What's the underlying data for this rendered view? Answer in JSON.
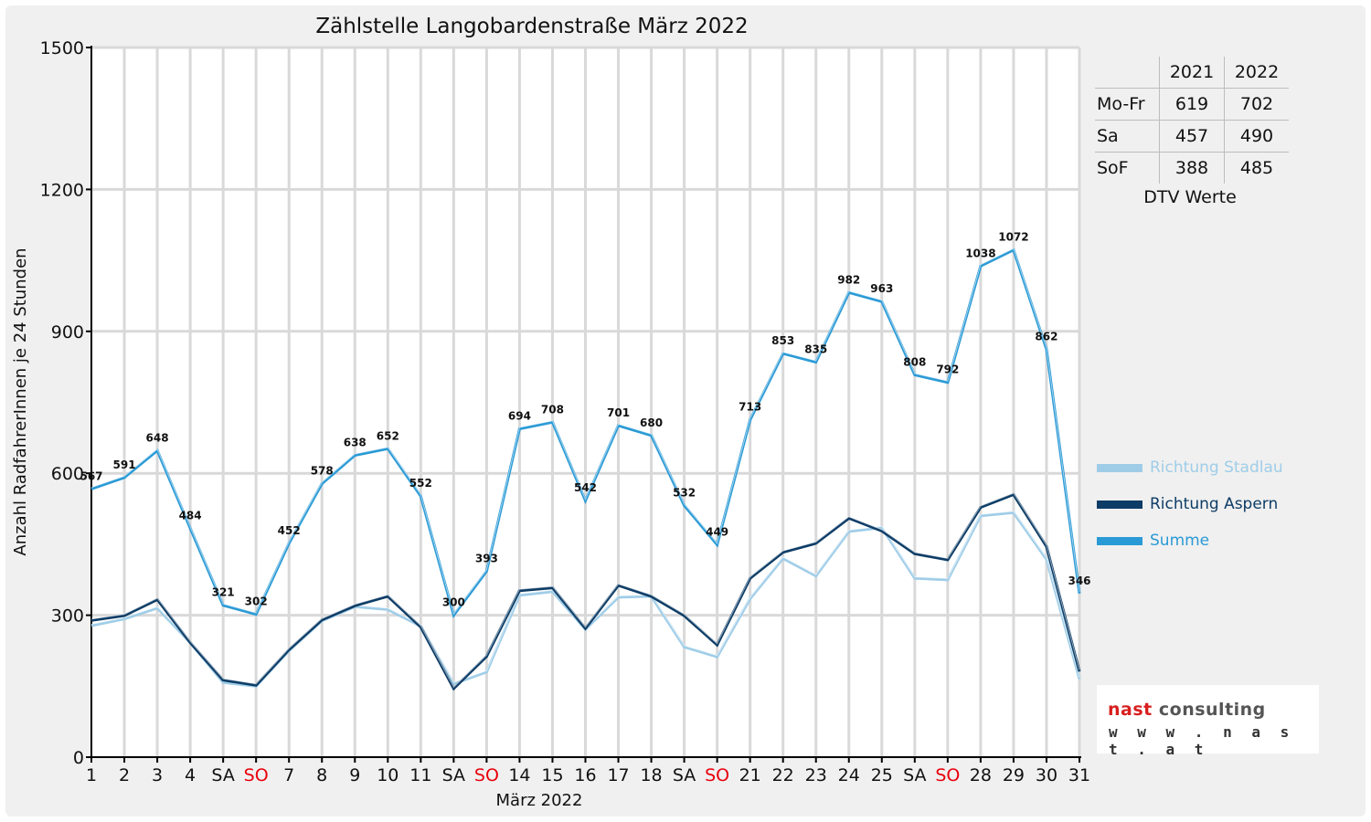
{
  "chart_data": {
    "type": "line",
    "title": "Zählstelle Langobardenstraße März 2022",
    "xlabel": "März 2022",
    "ylabel": "Anzahl RadfahrerInnen je 24 Stunden",
    "ylim": [
      0,
      1500
    ],
    "yticks": [
      0,
      300,
      600,
      900,
      1200,
      1500
    ],
    "grid": true,
    "legend_position": "right",
    "categories": [
      "1",
      "2",
      "3",
      "4",
      "SA",
      "SO",
      "7",
      "8",
      "9",
      "10",
      "11",
      "SA",
      "SO",
      "14",
      "15",
      "16",
      "17",
      "18",
      "SA",
      "SO",
      "21",
      "22",
      "23",
      "24",
      "25",
      "SA",
      "SO",
      "28",
      "29",
      "30",
      "31"
    ],
    "weekend_color": "#e8000b",
    "series": [
      {
        "name": "Richtung Stadlau",
        "color": "#9fcde8",
        "values": [
          278,
          292,
          315,
          242,
          158,
          150,
          225,
          288,
          318,
          312,
          277,
          155,
          180,
          342,
          350,
          270,
          338,
          340,
          233,
          212,
          335,
          420,
          383,
          477,
          485,
          378,
          375,
          510,
          517,
          418,
          165
        ]
      },
      {
        "name": "Richtung Aspern",
        "color": "#0d3c66",
        "values": [
          289,
          299,
          333,
          242,
          163,
          152,
          227,
          290,
          320,
          340,
          275,
          145,
          213,
          352,
          358,
          272,
          363,
          340,
          299,
          237,
          378,
          433,
          452,
          505,
          478,
          430,
          417,
          528,
          555,
          445,
          181
        ]
      },
      {
        "name": "Summe",
        "color": "#2a9ad6",
        "values": [
          567,
          591,
          648,
          484,
          321,
          302,
          452,
          578,
          638,
          652,
          552,
          300,
          393,
          694,
          708,
          542,
          701,
          680,
          532,
          449,
          713,
          853,
          835,
          982,
          963,
          808,
          792,
          1038,
          1072,
          862,
          346
        ]
      }
    ],
    "data_labels": [
      "567",
      "591",
      "648",
      "484",
      "321",
      "302",
      "452",
      "578",
      "638",
      "652",
      "552",
      "300",
      "393",
      "694",
      "708",
      "542",
      "701",
      "680",
      "532",
      "449",
      "713",
      "853",
      "835",
      "982",
      "963",
      "808",
      "792",
      "1038",
      "1072",
      "862",
      "346"
    ]
  },
  "dtv_table": {
    "years": [
      "2021",
      "2022"
    ],
    "rows": [
      {
        "label": "Mo-Fr",
        "v2021": "619",
        "v2022": "702"
      },
      {
        "label": "Sa",
        "v2021": "457",
        "v2022": "490"
      },
      {
        "label": "SoF",
        "v2021": "388",
        "v2022": "485"
      }
    ],
    "caption": "DTV Werte"
  },
  "logo": {
    "brand_a": "nast",
    "brand_b": "consulting",
    "url": "w w w . n a s t . a t"
  }
}
